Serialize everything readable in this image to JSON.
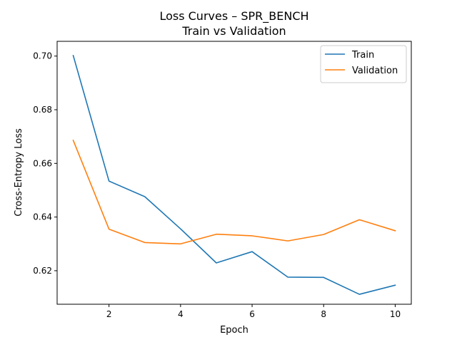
{
  "chart_data": {
    "type": "line",
    "title": "Loss Curves – SPR_BENCH",
    "subtitle": "Train vs Validation",
    "xlabel": "Epoch",
    "ylabel": "Cross-Entropy Loss",
    "x": [
      1,
      2,
      3,
      4,
      5,
      6,
      7,
      8,
      9,
      10
    ],
    "xticks": [
      2,
      4,
      6,
      8,
      10
    ],
    "yticks": [
      0.62,
      0.64,
      0.66,
      0.68,
      0.7
    ],
    "xlim": [
      0.55,
      10.45
    ],
    "ylim": [
      0.6075,
      0.7055
    ],
    "grid": false,
    "legend_position": "top-right",
    "series": [
      {
        "name": "Train",
        "color": "#1f77b4",
        "values": [
          0.7002,
          0.6534,
          0.6476,
          0.6356,
          0.6229,
          0.6271,
          0.6176,
          0.6175,
          0.6112,
          0.6146
        ]
      },
      {
        "name": "Validation",
        "color": "#ff7f0e",
        "values": [
          0.6686,
          0.6355,
          0.6305,
          0.63,
          0.6336,
          0.633,
          0.6311,
          0.6335,
          0.639,
          0.6349
        ]
      }
    ]
  }
}
